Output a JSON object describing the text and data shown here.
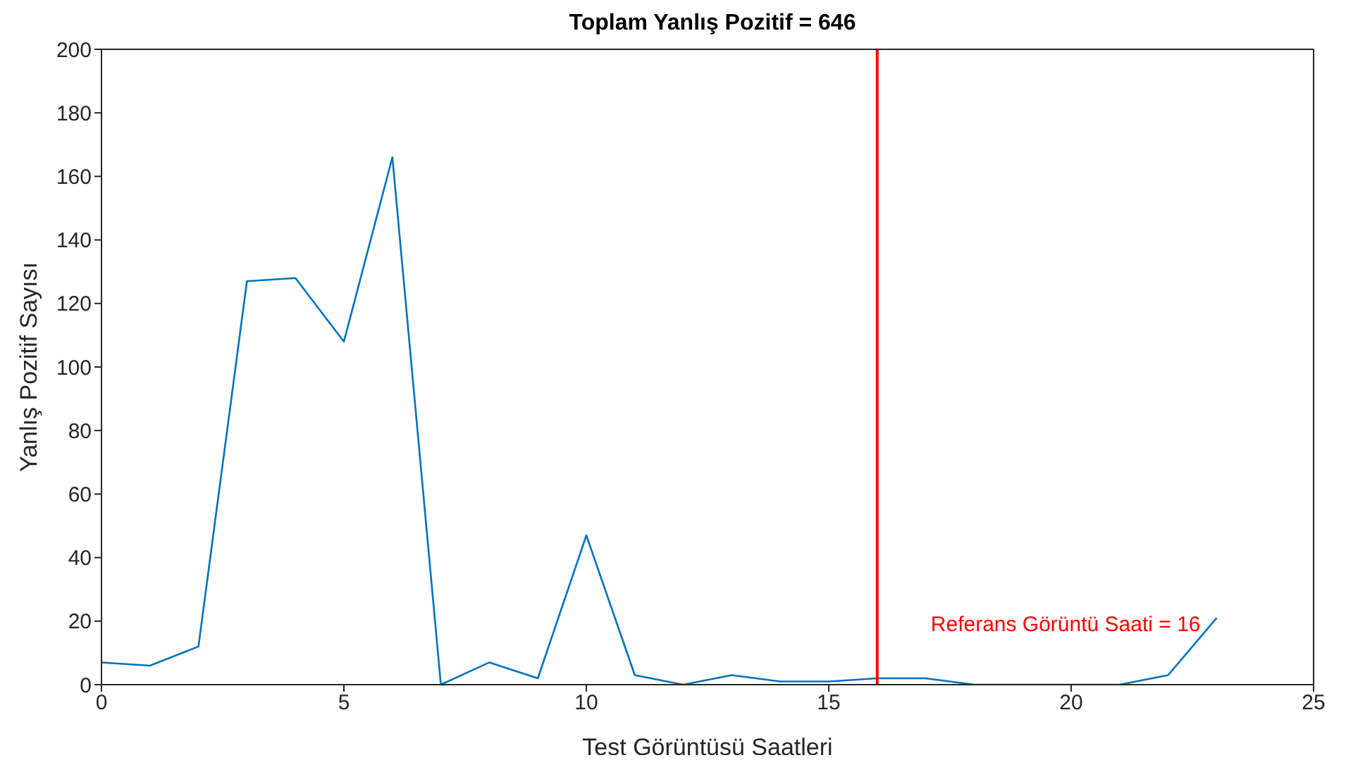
{
  "chart_data": {
    "type": "line",
    "title": "Toplam Yanlış Pozitif = 646",
    "xlabel": "Test Görüntüsü Saatleri",
    "ylabel": "Yanlış Pozitif Sayısı",
    "x": [
      0,
      1,
      2,
      3,
      4,
      5,
      6,
      7,
      8,
      9,
      10,
      11,
      12,
      13,
      14,
      15,
      16,
      17,
      18,
      19,
      20,
      21,
      22,
      23
    ],
    "series": [
      {
        "color": "#0072bd",
        "values": [
          7,
          6,
          12,
          127,
          128,
          108,
          166,
          0,
          7,
          2,
          47,
          3,
          0,
          3,
          1,
          1,
          2,
          2,
          0,
          0,
          0,
          0,
          3,
          21
        ]
      }
    ],
    "xlim": [
      0,
      25
    ],
    "xticks": [
      0,
      5,
      10,
      15,
      20,
      25
    ],
    "ylim": [
      0,
      200
    ],
    "yticks": [
      0,
      20,
      40,
      60,
      80,
      100,
      120,
      140,
      160,
      180,
      200
    ],
    "ref_lines": [
      {
        "axis": "x",
        "value": 16,
        "label": "Referans Görüntü Saati = 16",
        "color": "#ff0000"
      }
    ],
    "grid": false,
    "legend": false,
    "marker": "none",
    "line_style": "solid"
  }
}
